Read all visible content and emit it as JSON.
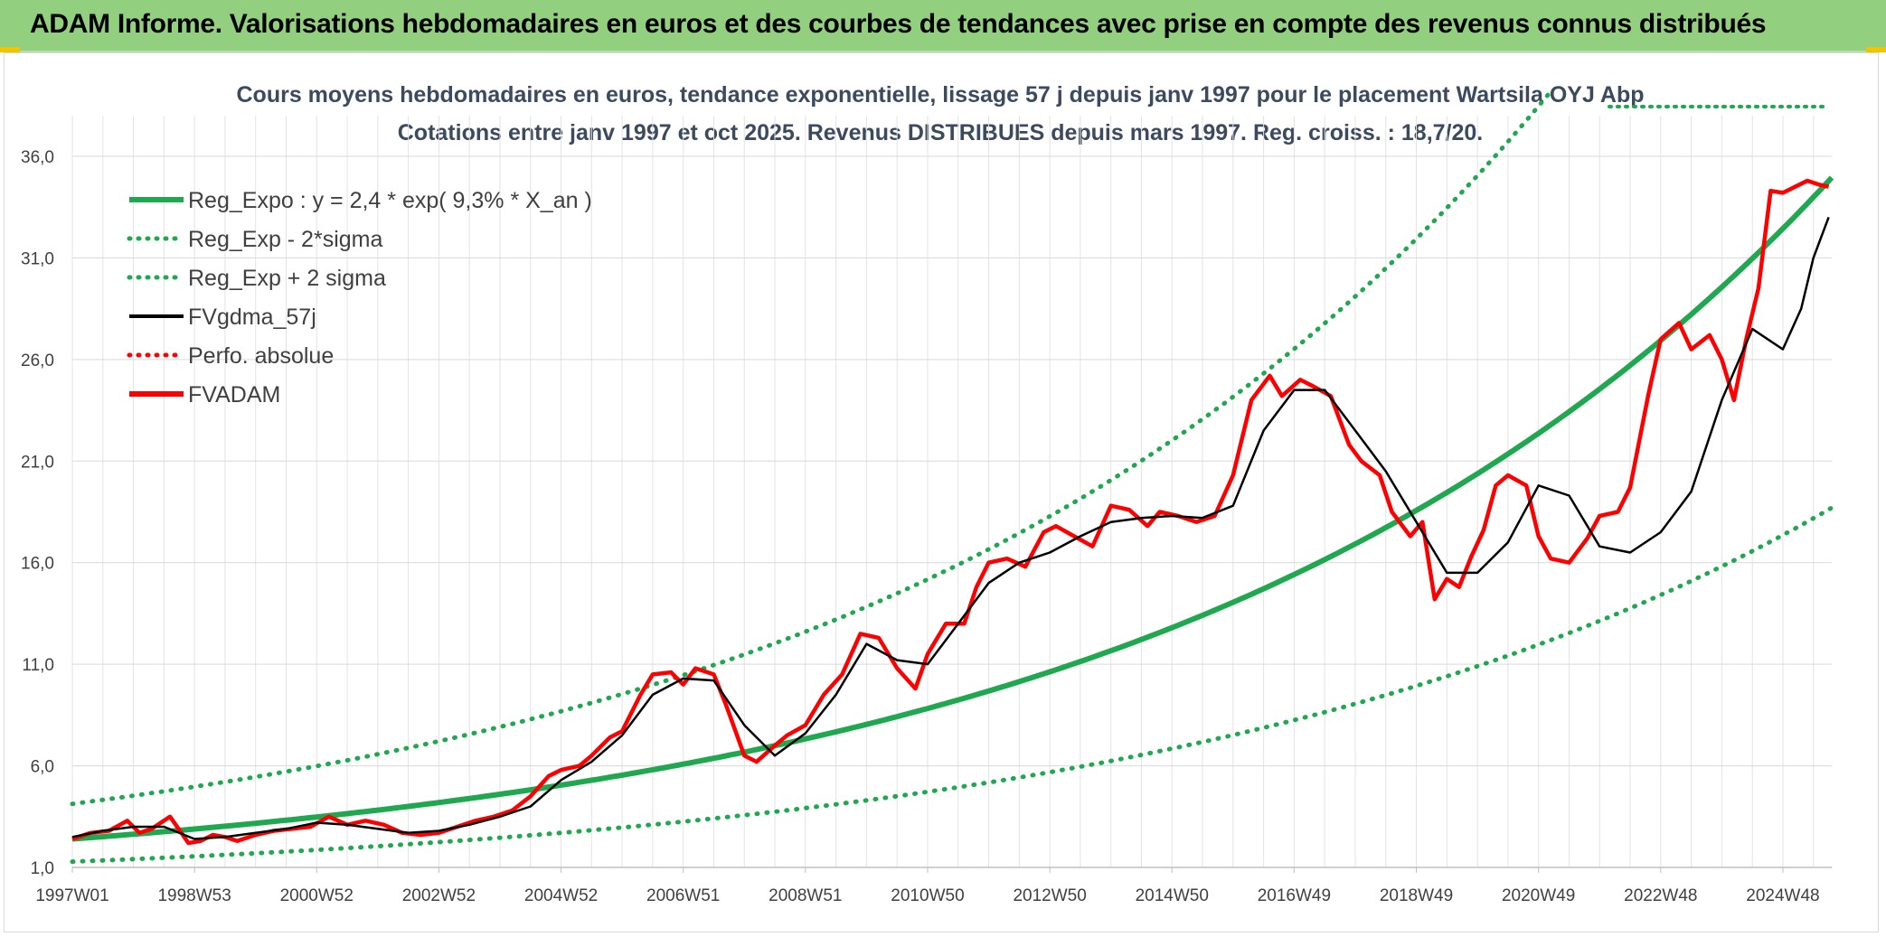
{
  "header": {
    "banner": "ADAM Informe. Valorisations hebdomadaires en euros et des courbes de tendances avec prise en compte des revenus connus distribués",
    "accent_color": "#92d080",
    "corner_color": "#f2c400"
  },
  "chart_data": {
    "type": "line",
    "title_line1": "Cours moyens hebdomadaires en euros, tendance exponentielle, lissage 57 j depuis janv 1997 pour le placement Wartsila OYJ Abp",
    "title_line2": "Cotations entre janv 1997 et oct 2025. Revenus DISTRIBUES depuis mars 1997. Reg. croiss. : 18,7/20.",
    "xlabel": "",
    "ylabel": "",
    "xlim": [
      1997.0,
      2025.8
    ],
    "ylim": [
      1.0,
      38.0
    ],
    "y_ticks": [
      1.0,
      6.0,
      11.0,
      16.0,
      21.0,
      26.0,
      31.0,
      36.0
    ],
    "y_tick_labels": [
      "1,0",
      "6,0",
      "11,0",
      "16,0",
      "21,0",
      "26,0",
      "31,0",
      "36,0"
    ],
    "x_tick_positions": [
      1997.0,
      1999.0,
      2001.0,
      2003.0,
      2005.0,
      2007.0,
      2009.0,
      2011.0,
      2013.0,
      2015.0,
      2017.0,
      2019.0,
      2021.0,
      2023.0,
      2025.0
    ],
    "x_tick_labels": [
      "1997W01",
      "1998W53",
      "2000W52",
      "2002W52",
      "2004W52",
      "2006W51",
      "2008W51",
      "2010W50",
      "2012W50",
      "2014W50",
      "2016W49",
      "2018W49",
      "2020W49",
      "2022W48",
      "2024W48"
    ],
    "grid": true,
    "legend_position": "top-left",
    "legend": [
      {
        "label": "Reg_Expo : y = 2,4 * exp( 9,3% *  X_an )",
        "color": "#1fa84f",
        "style": "solid-thick"
      },
      {
        "label": "Reg_Exp - 2*sigma",
        "color": "#1fa84f",
        "style": "dotted"
      },
      {
        "label": "Reg_Exp + 2 sigma",
        "color": "#1fa84f",
        "style": "dotted"
      },
      {
        "label": "FVgdma_57j",
        "color": "#000000",
        "style": "solid"
      },
      {
        "label": "Perfo. absolue",
        "color": "#ff0000",
        "style": "dotted"
      },
      {
        "label": "FVADAM",
        "color": "#ff0000",
        "style": "solid-thick"
      }
    ],
    "regression": {
      "a": 2.4,
      "rate": 0.093,
      "x0": 1997.0,
      "lower_factor": 0.535,
      "upper_factor": 1.72
    },
    "series": [
      {
        "name": "FVADAM",
        "x": [
          1997.0,
          1997.3,
          1997.6,
          1997.9,
          1998.1,
          1998.3,
          1998.6,
          1998.9,
          1999.1,
          1999.3,
          1999.5,
          1999.7,
          2000.0,
          2000.3,
          2000.6,
          2000.9,
          2001.2,
          2001.5,
          2001.8,
          2002.1,
          2002.4,
          2002.7,
          2003.0,
          2003.3,
          2003.6,
          2003.9,
          2004.2,
          2004.5,
          2004.8,
          2005.0,
          2005.3,
          2005.5,
          2005.8,
          2006.0,
          2006.3,
          2006.5,
          2006.8,
          2007.0,
          2007.2,
          2007.5,
          2007.7,
          2008.0,
          2008.2,
          2008.5,
          2008.7,
          2009.0,
          2009.3,
          2009.6,
          2009.9,
          2010.2,
          2010.5,
          2010.8,
          2011.0,
          2011.3,
          2011.6,
          2011.8,
          2012.0,
          2012.3,
          2012.6,
          2012.9,
          2013.1,
          2013.4,
          2013.7,
          2014.0,
          2014.3,
          2014.6,
          2014.8,
          2015.1,
          2015.4,
          2015.7,
          2016.0,
          2016.3,
          2016.6,
          2016.8,
          2017.1,
          2017.3,
          2017.6,
          2017.9,
          2018.1,
          2018.4,
          2018.6,
          2018.9,
          2019.1,
          2019.3,
          2019.5,
          2019.7,
          2019.9,
          2020.1,
          2020.3,
          2020.5,
          2020.8,
          2021.0,
          2021.2,
          2021.5,
          2021.8,
          2022.0,
          2022.3,
          2022.5,
          2022.8,
          2023.0,
          2023.3,
          2023.5,
          2023.8,
          2024.0,
          2024.2,
          2024.4,
          2024.6,
          2024.8,
          2025.0,
          2025.2,
          2025.4,
          2025.6,
          2025.75
        ],
        "values": [
          2.4,
          2.7,
          2.8,
          3.3,
          2.7,
          2.9,
          3.5,
          2.2,
          2.3,
          2.6,
          2.5,
          2.3,
          2.6,
          2.8,
          2.9,
          3.0,
          3.5,
          3.1,
          3.3,
          3.1,
          2.7,
          2.6,
          2.7,
          3.0,
          3.3,
          3.5,
          3.8,
          4.5,
          5.5,
          5.8,
          6.0,
          6.5,
          7.4,
          7.7,
          9.5,
          10.5,
          10.6,
          10.0,
          10.8,
          10.5,
          9.0,
          6.5,
          6.2,
          7.0,
          7.5,
          8.0,
          9.5,
          10.5,
          12.5,
          12.3,
          10.8,
          9.8,
          11.5,
          13.0,
          13.0,
          14.8,
          16.0,
          16.2,
          15.8,
          17.5,
          17.8,
          17.3,
          16.8,
          18.8,
          18.6,
          17.8,
          18.5,
          18.3,
          18.0,
          18.3,
          20.3,
          24.0,
          25.2,
          24.2,
          25.0,
          24.7,
          24.2,
          21.8,
          21.0,
          20.3,
          18.5,
          17.3,
          18.0,
          14.2,
          15.2,
          14.8,
          16.3,
          17.6,
          19.8,
          20.3,
          19.8,
          17.3,
          16.2,
          16.0,
          17.2,
          18.3,
          18.5,
          19.7,
          24.3,
          27.0,
          27.8,
          26.5,
          27.2,
          26.0,
          24.0,
          27.0,
          29.5,
          34.3,
          34.2,
          34.5,
          34.8,
          34.6,
          34.5
        ]
      },
      {
        "name": "FVgdma_57j",
        "x": [
          1997.0,
          1997.5,
          1998.0,
          1998.5,
          1999.0,
          1999.5,
          2000.0,
          2000.5,
          2001.0,
          2001.5,
          2002.0,
          2002.5,
          2003.0,
          2003.5,
          2004.0,
          2004.5,
          2005.0,
          2005.5,
          2006.0,
          2006.5,
          2007.0,
          2007.5,
          2008.0,
          2008.5,
          2009.0,
          2009.5,
          2010.0,
          2010.5,
          2011.0,
          2011.5,
          2012.0,
          2012.5,
          2013.0,
          2013.5,
          2014.0,
          2014.5,
          2015.0,
          2015.5,
          2016.0,
          2016.5,
          2017.0,
          2017.5,
          2018.0,
          2018.5,
          2019.0,
          2019.5,
          2020.0,
          2020.5,
          2021.0,
          2021.5,
          2022.0,
          2022.5,
          2023.0,
          2023.5,
          2024.0,
          2024.5,
          2025.0,
          2025.3,
          2025.5,
          2025.75
        ],
        "values": [
          2.5,
          2.8,
          3.0,
          3.0,
          2.4,
          2.5,
          2.7,
          2.9,
          3.2,
          3.1,
          2.9,
          2.7,
          2.8,
          3.1,
          3.5,
          4.0,
          5.3,
          6.2,
          7.5,
          9.5,
          10.3,
          10.2,
          8.0,
          6.5,
          7.6,
          9.5,
          12.0,
          11.2,
          11.0,
          13.0,
          15.0,
          16.0,
          16.5,
          17.3,
          18.0,
          18.2,
          18.3,
          18.2,
          18.8,
          22.5,
          24.5,
          24.5,
          22.5,
          20.5,
          18.0,
          15.5,
          15.5,
          17.0,
          19.8,
          19.3,
          16.8,
          16.5,
          17.5,
          19.5,
          24.0,
          27.5,
          26.5,
          28.5,
          31.0,
          33.0
        ]
      }
    ]
  }
}
